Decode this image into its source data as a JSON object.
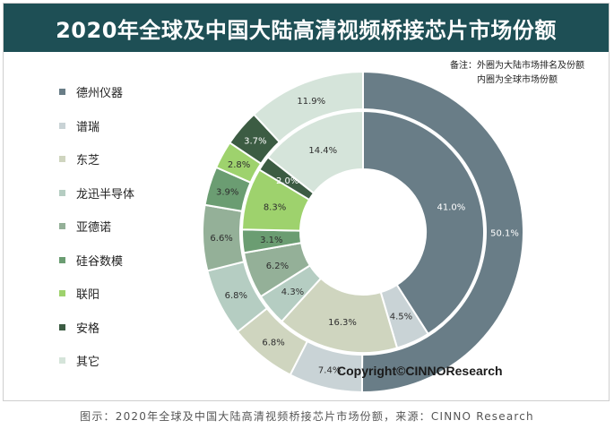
{
  "title": "2020年全球及中国大陆高清视频桥接芯片市场份额",
  "notes": {
    "line1": "备注：外圈为大陆市场排名及份额",
    "line2": "内圈为全球市场份额"
  },
  "copyright": "Copyright©CINNOResearch",
  "caption": "图示：2020年全球及中国大陆高清视频桥接芯片市场份额，来源：CINNO Research",
  "chart_data": {
    "type": "donut",
    "categories": [
      "德州仪器",
      "谱瑞",
      "东芝",
      "龙迅半导体",
      "亚德诺",
      "硅谷数模",
      "联阳",
      "安格",
      "其它"
    ],
    "colors": [
      "#697d87",
      "#c9d3d6",
      "#cfd5bf",
      "#b5cdc2",
      "#94b098",
      "#6b9d72",
      "#9ed26d",
      "#3c5c43",
      "#d5e4da"
    ],
    "series": [
      {
        "ring": "outer",
        "values": [
          50.1,
          7.4,
          6.8,
          6.8,
          6.6,
          3.9,
          2.8,
          3.7,
          11.9
        ],
        "labels": [
          "50.1%",
          "7.4%",
          "6.8%",
          "6.8%",
          "6.6%",
          "3.9%",
          "2.8%",
          "3.7%",
          "11.9%"
        ]
      },
      {
        "ring": "inner",
        "values": [
          41.0,
          4.5,
          16.3,
          4.3,
          6.2,
          3.1,
          8.3,
          2.0,
          14.4
        ],
        "labels": [
          "41.0%",
          "4.5%",
          "16.3%",
          "4.3%",
          "6.2%",
          "3.1%",
          "8.3%",
          "2.0%",
          "14.4%"
        ]
      }
    ]
  }
}
